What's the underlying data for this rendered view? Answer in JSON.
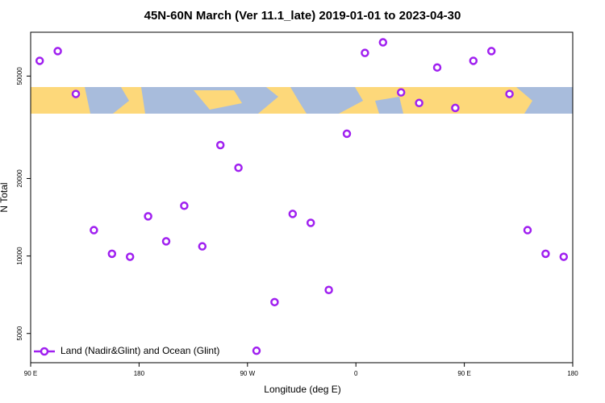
{
  "chart_data": {
    "type": "scatter",
    "title": "45N-60N March (Ver 11.1_late)   2019-01-01 to 2023-04-30",
    "xlabel": "Longitude (deg E)",
    "ylabel": "N Total",
    "xlim": [
      90,
      540
    ],
    "xticks": [
      {
        "value": 90,
        "label": "90 E"
      },
      180,
      {
        "value": 270,
        "label": "90 W"
      },
      {
        "value": 360,
        "label": "0"
      },
      {
        "value": 450,
        "label": "90 E"
      },
      {
        "value": 540,
        "label": "180"
      }
    ],
    "ylim": [
      3850,
      74000
    ],
    "ylog": true,
    "yticks": [
      5000,
      10000,
      20000,
      50000
    ],
    "legend_position": "bottom-left",
    "x": [
      97.5,
      112.5,
      127.5,
      142.5,
      157.5,
      172.5,
      187.5,
      202.5,
      217.5,
      232.5,
      247.5,
      262.5,
      277.5,
      292.5,
      307.5,
      322.5,
      337.5,
      352.5,
      367.5,
      382.5,
      397.5,
      412.5,
      427.5,
      442.5,
      457.5,
      472.5,
      487.5,
      502.5,
      517.5,
      532.5
    ],
    "series": [
      {
        "name": "Land (Nadir&Glint) and Ocean (Glint)",
        "color": "#a020f0",
        "values": [
          57300,
          62500,
          42600,
          12600,
          10200,
          9930,
          14260,
          11400,
          15670,
          10900,
          26970,
          22020,
          4285,
          6620,
          14570,
          13450,
          7380,
          29850,
          61500,
          67600,
          43200,
          39300,
          54000,
          37600,
          57300,
          62500,
          42600,
          12600,
          10200,
          9930
        ]
      }
    ]
  }
}
